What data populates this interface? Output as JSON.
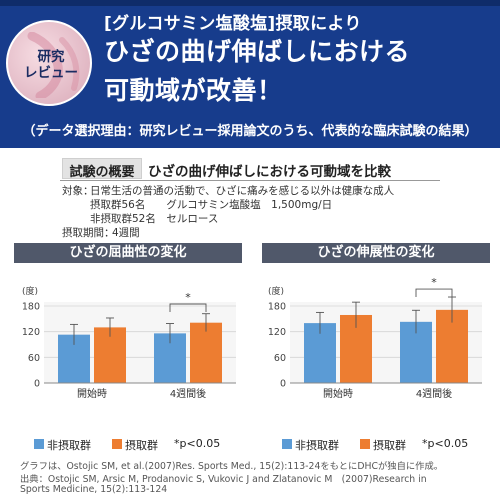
{
  "banner": {
    "badge_line1": "研究",
    "badge_line2": "レビュー",
    "headline1": "[グルコサミン塩酸塩]摂取により",
    "headline2": "ひざの曲げ伸ばしにおける",
    "headline3": "可動域が改善！",
    "subline": "（データ選択理由：研究レビュー採用論文のうち、代表的な臨床試験の結果）"
  },
  "summary": {
    "label": "試験の概要",
    "heading": "ひざの曲げ伸ばしにおける可動域を比較",
    "subjects_label": "対象：",
    "subjects_line1": "日常生活の普通の活動で、ひざに痛みを感じる以外は健康な成人",
    "subjects_line2": "摂取群56名　　グルコサミン塩酸塩　1,500mg/日",
    "subjects_line3": "非摂取群52名　セルロース",
    "period_label": "摂取期間：",
    "period_value": "4週間"
  },
  "colors": {
    "control": "#5b9bd5",
    "treatment": "#ed7d31",
    "banner": "#173c8c",
    "header": "#50586a"
  },
  "chart_data": [
    {
      "type": "bar",
      "title": "ひざの屈曲性の変化",
      "ylabel": "(度)",
      "ylim": [
        0,
        180
      ],
      "yticks": [
        0,
        60,
        120,
        180
      ],
      "categories": [
        "開始時",
        "4週間後"
      ],
      "series": [
        {
          "name": "非摂取群",
          "values": [
            113,
            116
          ],
          "errors": [
            24,
            23
          ]
        },
        {
          "name": "摂取群",
          "values": [
            130,
            141
          ],
          "errors": [
            22,
            21
          ]
        }
      ],
      "significance": {
        "category": "4週間後",
        "label": "*"
      },
      "grid": true
    },
    {
      "type": "bar",
      "title": "ひざの伸展性の変化",
      "ylabel": "(度)",
      "ylim": [
        0,
        180
      ],
      "yticks": [
        0,
        60,
        120,
        180
      ],
      "categories": [
        "開始時",
        "4週間後"
      ],
      "series": [
        {
          "name": "非摂取群",
          "values": [
            140,
            143
          ],
          "errors": [
            25,
            27
          ]
        },
        {
          "name": "摂取群",
          "values": [
            159,
            171
          ],
          "errors": [
            30,
            30
          ]
        }
      ],
      "significance": {
        "category": "4週間後",
        "label": "*"
      },
      "grid": true
    }
  ],
  "legend": {
    "control": "非摂取群",
    "treatment": "摂取群",
    "note": "*p<0.05"
  },
  "footnote": {
    "line1": "グラフは、Ostojic SM, et al.(2007)Res. Sports Med., 15(2):113-24をもとにDHCが独自に作成。",
    "line2": "出典：Ostojic SM, Arsic M, Prodanovic S, Vukovic J and Zlatanovic M　(2007)Research in",
    "line3": "Sports Medicine, 15(2):113-124"
  }
}
